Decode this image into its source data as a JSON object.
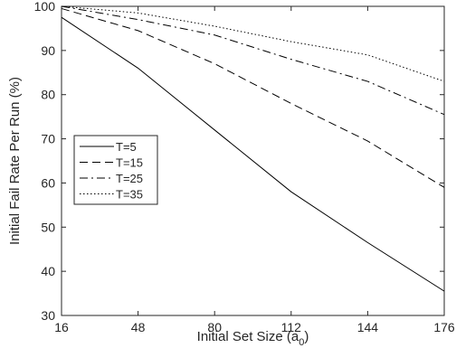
{
  "chart_data": {
    "type": "line",
    "title": "",
    "xlabel": "Initial Set Size (a",
    "xlabel_sub": "0",
    "xlabel_close": ")",
    "ylabel": "Initial Fail Rate Per Run (%)",
    "xlim": [
      16,
      176
    ],
    "ylim": [
      30,
      100
    ],
    "x_ticks": [
      16,
      48,
      80,
      112,
      144,
      176
    ],
    "y_ticks": [
      30,
      40,
      50,
      60,
      70,
      80,
      90,
      100
    ],
    "grid": false,
    "legend_position": "left",
    "x": [
      16,
      48,
      80,
      112,
      144,
      176
    ],
    "series": [
      {
        "name": "T=5",
        "dash": "solid",
        "values": [
          97.5,
          86.0,
          72.0,
          58.0,
          46.5,
          35.5
        ]
      },
      {
        "name": "T=15",
        "dash": "dashed",
        "values": [
          99.5,
          94.5,
          87.0,
          78.0,
          69.5,
          59.0
        ]
      },
      {
        "name": "T=25",
        "dash": "dashdot",
        "values": [
          100.0,
          97.0,
          93.5,
          88.0,
          83.0,
          75.5
        ]
      },
      {
        "name": "T=35",
        "dash": "dotted",
        "values": [
          100.0,
          98.5,
          95.5,
          92.0,
          89.0,
          83.0
        ]
      }
    ]
  }
}
